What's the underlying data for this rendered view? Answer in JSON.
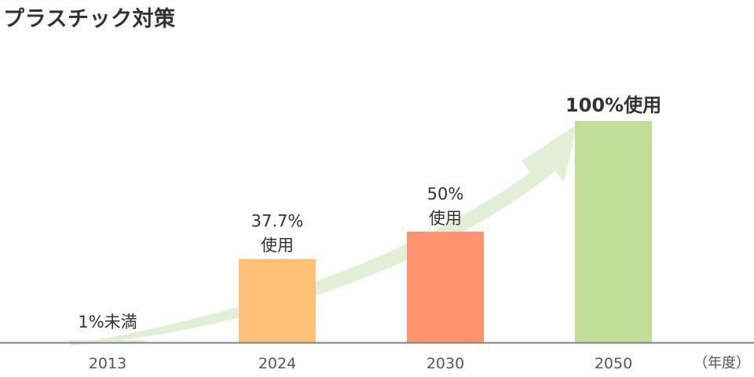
{
  "chart_data": {
    "type": "bar",
    "title": "プラスチック対策",
    "categories": [
      "2013",
      "2024",
      "2030",
      "2050"
    ],
    "values": [
      1,
      37.7,
      50,
      100
    ],
    "ylim": [
      0,
      100
    ],
    "unit_label": "（年度）",
    "data_labels": [
      [
        "1%未満"
      ],
      [
        "37.7%",
        "使用"
      ],
      [
        "50%",
        "使用"
      ],
      [
        "100%使用"
      ]
    ],
    "colors": [
      "#e2efd3",
      "#ffc178",
      "#ff9370",
      "#c1de96"
    ],
    "axis_color": "#808080",
    "arrow_color": "#e1efd6",
    "grid": false,
    "legend": "none"
  }
}
